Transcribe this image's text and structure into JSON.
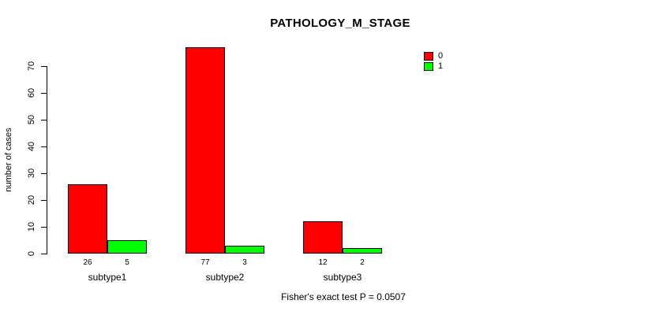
{
  "title": "PATHOLOGY_M_STAGE",
  "footer": "Fisher's exact test P = 0.0507",
  "legend": {
    "items": [
      {
        "label": "0",
        "color": "#ff0000"
      },
      {
        "label": "1",
        "color": "#00ff00"
      }
    ]
  },
  "chart_data": {
    "type": "bar",
    "title": "PATHOLOGY_M_STAGE",
    "categories": [
      "subtype1",
      "subtype2",
      "subtype3"
    ],
    "series": [
      {
        "name": "0",
        "color": "#ff0000",
        "values": [
          26,
          77,
          12
        ]
      },
      {
        "name": "1",
        "color": "#00ff00",
        "values": [
          5,
          3,
          2
        ]
      }
    ],
    "bar_value_labels": [
      [
        26,
        5
      ],
      [
        77,
        3
      ],
      [
        12,
        2
      ]
    ],
    "xlabel": "",
    "ylabel": "number of cases",
    "yticks": [
      0,
      10,
      20,
      30,
      40,
      50,
      60,
      70
    ],
    "ylim": [
      0,
      70
    ],
    "grid": false,
    "legend_position": "top-right",
    "annotation": "Fisher's exact test P = 0.0507"
  }
}
